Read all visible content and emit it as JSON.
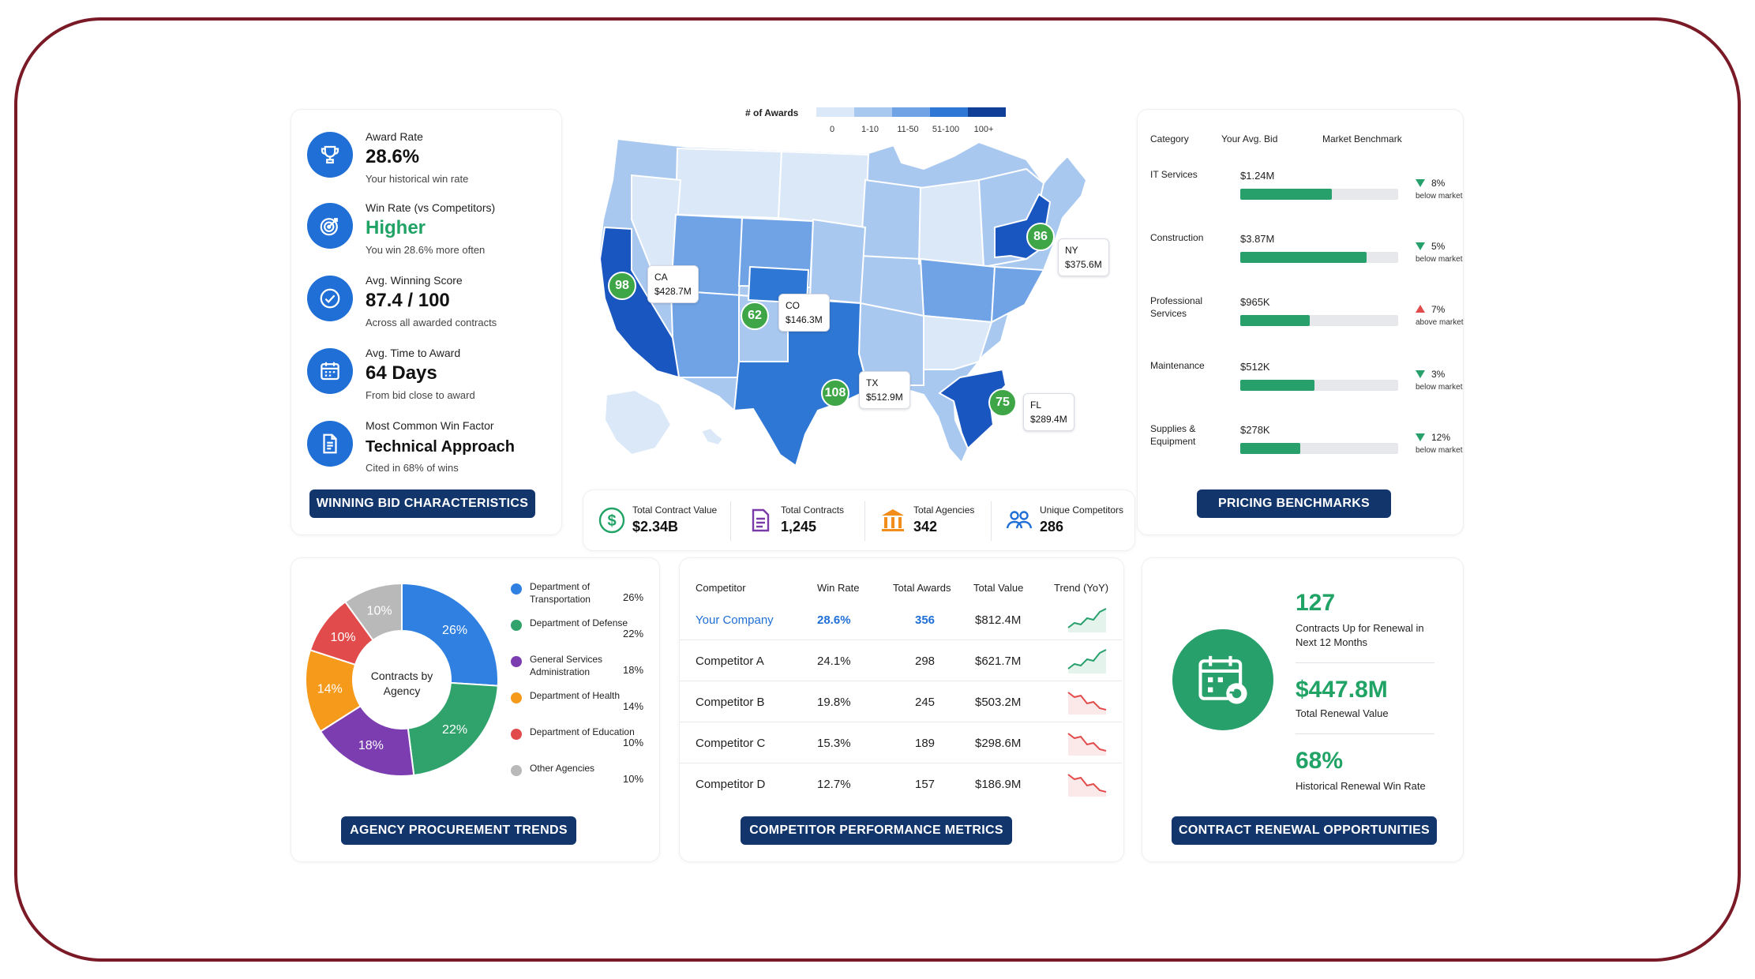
{
  "winning_bid": {
    "items": [
      {
        "label": "Award Rate",
        "value": "28.6%",
        "sub": "Your historical win rate",
        "icon": "trophy-icon"
      },
      {
        "label": "Win Rate (vs Competitors)",
        "value": "Higher",
        "sub": "You win 28.6% more often",
        "icon": "target-icon"
      },
      {
        "label": "Avg. Winning Score",
        "value": "87.4 / 100",
        "sub": "Across all awarded contracts",
        "icon": "check-circle-icon"
      },
      {
        "label": "Avg. Time to Award",
        "value": "64 Days",
        "sub": "From bid close to award",
        "icon": "calendar-icon"
      },
      {
        "label": "Most Common Win Factor",
        "value": "Technical Approach",
        "sub": "Cited in 68% of wins",
        "icon": "document-icon"
      }
    ],
    "button": "WINNING BID CHARACTERISTICS"
  },
  "map": {
    "legend_title": "# of Awards",
    "legend_labels": [
      "0",
      "1-10",
      "11-50",
      "51-100",
      "100+"
    ],
    "legend_colors": [
      "#dbe8f8",
      "#a9c8f0",
      "#6fa3e6",
      "#2f77d4",
      "#0f3f96"
    ],
    "callouts": [
      {
        "state": "CA",
        "value": "$428.7M",
        "awards": "98"
      },
      {
        "state": "CO",
        "value": "$146.3M",
        "awards": "62"
      },
      {
        "state": "TX",
        "value": "$512.9M",
        "awards": "108"
      },
      {
        "state": "FL",
        "value": "$289.4M",
        "awards": "75"
      },
      {
        "state": "NY",
        "value": "$375.6M",
        "awards": "86"
      }
    ]
  },
  "totals": [
    {
      "label": "Total Contract Value",
      "value": "$2.34B",
      "icon": "dollar-icon",
      "color": "#21a366"
    },
    {
      "label": "Total Contracts",
      "value": "1,245",
      "icon": "contract-icon",
      "color": "#7a3aa8"
    },
    {
      "label": "Total Agencies",
      "value": "342",
      "icon": "bank-icon",
      "color": "#f28c1a"
    },
    {
      "label": "Unique Competitors",
      "value": "286",
      "icon": "people-icon",
      "color": "#1f6fd6"
    }
  ],
  "pricing": {
    "headers": [
      "Category",
      "Your Avg. Bid",
      "Market Benchmark"
    ],
    "rows": [
      {
        "category": "IT Services",
        "bid": "$1.24M",
        "fill": 0.58,
        "delta": "8%",
        "direction": "down",
        "note": "below market"
      },
      {
        "category": "Construction",
        "bid": "$3.87M",
        "fill": 0.8,
        "delta": "5%",
        "direction": "down",
        "note": "below market"
      },
      {
        "category": "Professional Services",
        "bid": "$965K",
        "fill": 0.44,
        "delta": "7%",
        "direction": "up",
        "note": "above market"
      },
      {
        "category": "Maintenance",
        "bid": "$512K",
        "fill": 0.47,
        "delta": "3%",
        "direction": "down",
        "note": "below market"
      },
      {
        "category": "Supplies & Equipment",
        "bid": "$278K",
        "fill": 0.38,
        "delta": "12%",
        "direction": "down",
        "note": "below market"
      }
    ],
    "button": "PRICING BENCHMARKS"
  },
  "agency": {
    "center_label": "Contracts by Agency",
    "chart_data": {
      "type": "pie",
      "categories": [
        "Department of Transportation",
        "Department of Defense",
        "General Services Administration",
        "Department of Health",
        "Department of Education",
        "Other Agencies"
      ],
      "values": [
        26,
        22,
        18,
        14,
        10,
        10
      ],
      "labels": [
        "26%",
        "22%",
        "18%",
        "14%",
        "10%",
        "10%"
      ],
      "colors": [
        "#2f80e0",
        "#2fa36b",
        "#7b3db0",
        "#f59a1b",
        "#e14b4b",
        "#b9b9b9"
      ]
    },
    "button": "AGENCY PROCUREMENT TRENDS"
  },
  "competitors": {
    "headers": [
      "Competitor",
      "Win Rate",
      "Total Awards",
      "Total Value",
      "Trend (YoY)"
    ],
    "rows": [
      {
        "name": "Your Company",
        "win_rate": "28.6%",
        "awards": "356",
        "value": "$812.4M",
        "trend": "up"
      },
      {
        "name": "Competitor A",
        "win_rate": "24.1%",
        "awards": "298",
        "value": "$621.7M",
        "trend": "up"
      },
      {
        "name": "Competitor B",
        "win_rate": "19.8%",
        "awards": "245",
        "value": "$503.2M",
        "trend": "down"
      },
      {
        "name": "Competitor C",
        "win_rate": "15.3%",
        "awards": "189",
        "value": "$298.6M",
        "trend": "down"
      },
      {
        "name": "Competitor D",
        "win_rate": "12.7%",
        "awards": "157",
        "value": "$186.9M",
        "trend": "down"
      }
    ],
    "button": "COMPETITOR PERFORMANCE METRICS"
  },
  "renewal": {
    "contracts_up": "127",
    "contracts_up_label": "Contracts Up for Renewal in Next 12 Months",
    "renewal_value": "$447.8M",
    "renewal_value_label": "Total Renewal Value",
    "win_rate": "68%",
    "win_rate_label": "Historical Renewal Win Rate",
    "button": "CONTRACT RENEWAL OPPORTUNITIES"
  }
}
